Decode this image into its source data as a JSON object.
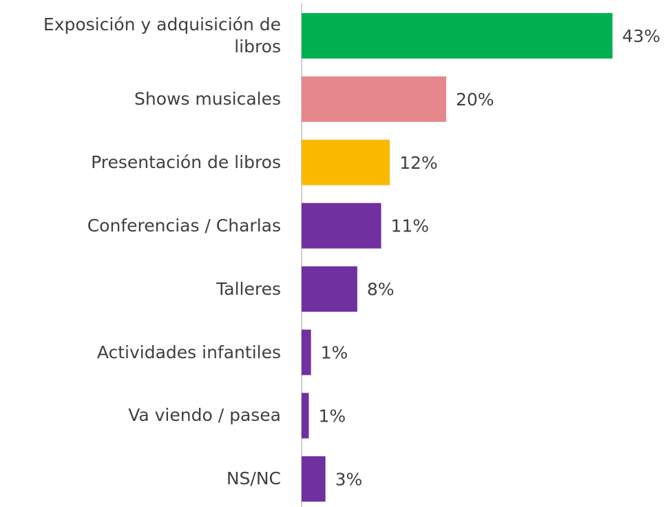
{
  "chart_data": {
    "type": "hbar",
    "categories": [
      "Exposición y adquisición de libros",
      "Shows musicales",
      "Presentación de libros",
      "Conferencias / Charlas",
      "Talleres",
      "Actividades infantiles",
      "Va viendo / pasea",
      "NS/NC"
    ],
    "values": [
      43,
      20,
      12.2,
      11,
      7.7,
      1.3,
      1.0,
      3.3
    ],
    "value_labels": [
      "43%",
      "20%",
      "12%",
      "11%",
      "8%",
      "1%",
      "1%",
      "3%"
    ],
    "colors": [
      "#00b050",
      "#e6878b",
      "#fab900",
      "#7030a0",
      "#7030a0",
      "#7030a0",
      "#7030a0",
      "#7030a0"
    ],
    "xlim": [
      0,
      50
    ]
  }
}
